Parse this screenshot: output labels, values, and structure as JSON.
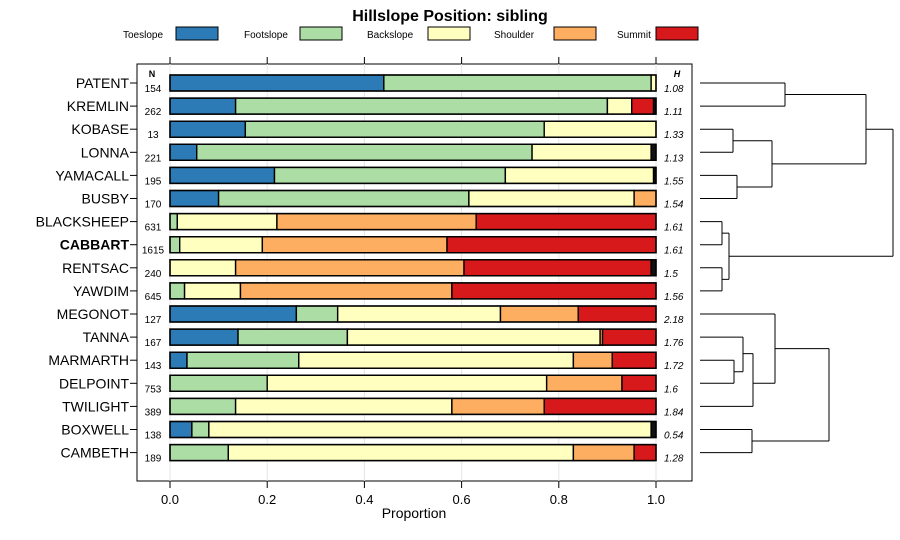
{
  "chart_data": {
    "type": "bar",
    "stacked": true,
    "orientation": "horizontal",
    "title": "Hillslope Position: sibling",
    "xlabel": "Proportion",
    "ylabel": "",
    "xlim": [
      0,
      1
    ],
    "xticks": [
      "0.0",
      "0.2",
      "0.4",
      "0.6",
      "0.8",
      "1.0"
    ],
    "xtick_values": [
      0,
      0.2,
      0.4,
      0.6,
      0.8,
      1.0
    ],
    "n_header": "N",
    "h_header": "H",
    "legend_placement": "top",
    "legend": [
      {
        "name": "Toeslope",
        "color": "#2C7BB6"
      },
      {
        "name": "Footslope",
        "color": "#ABDDA4"
      },
      {
        "name": "Backslope",
        "color": "#FFFFBF"
      },
      {
        "name": "Shoulder",
        "color": "#FDAE61"
      },
      {
        "name": "Summit",
        "color": "#D7191C"
      }
    ],
    "categories": [
      "PATENT",
      "KREMLIN",
      "KOBASE",
      "LONNA",
      "YAMACALL",
      "BUSBY",
      "BLACKSHEEP",
      "CABBART",
      "RENTSAC",
      "YAWDIM",
      "MEGONOT",
      "TANNA",
      "MARMARTH",
      "DELPOINT",
      "TWILIGHT",
      "BOXWELL",
      "CAMBETH"
    ],
    "highlighted": "CABBART",
    "n": [
      "154",
      "262",
      "13",
      "221",
      "195",
      "170",
      "631",
      "1615",
      "240",
      "645",
      "127",
      "167",
      "143",
      "753",
      "389",
      "138",
      "189"
    ],
    "h": [
      "1.08",
      "1.11",
      "1.33",
      "1.13",
      "1.55",
      "1.54",
      "1.61",
      "1.61",
      "1.5",
      "1.56",
      "2.18",
      "1.76",
      "1.72",
      "1.6",
      "1.84",
      "0.54",
      "1.28"
    ],
    "other_color": "#111111",
    "rows": [
      {
        "name": "PATENT",
        "values": [
          0.44,
          0.55,
          0.01,
          0.0,
          0.0,
          0.0
        ]
      },
      {
        "name": "KREMLIN",
        "values": [
          0.135,
          0.765,
          0.05,
          0.0,
          0.045,
          0.005
        ]
      },
      {
        "name": "KOBASE",
        "values": [
          0.155,
          0.615,
          0.23,
          0.0,
          0.0,
          0.0
        ]
      },
      {
        "name": "LONNA",
        "values": [
          0.055,
          0.69,
          0.245,
          0.0,
          0.0,
          0.01
        ]
      },
      {
        "name": "YAMACALL",
        "values": [
          0.215,
          0.475,
          0.305,
          0.0,
          0.0,
          0.005
        ]
      },
      {
        "name": "BUSBY",
        "values": [
          0.1,
          0.515,
          0.34,
          0.045,
          0.0,
          0.0
        ]
      },
      {
        "name": "BLACKSHEEP",
        "values": [
          0.0,
          0.015,
          0.205,
          0.41,
          0.37,
          0.0
        ]
      },
      {
        "name": "CABBART",
        "values": [
          0.0,
          0.02,
          0.17,
          0.38,
          0.43,
          0.0
        ]
      },
      {
        "name": "RENTSAC",
        "values": [
          0.0,
          0.0,
          0.135,
          0.47,
          0.385,
          0.01
        ]
      },
      {
        "name": "YAWDIM",
        "values": [
          0.0,
          0.03,
          0.115,
          0.435,
          0.42,
          0.0
        ]
      },
      {
        "name": "MEGONOT",
        "values": [
          0.26,
          0.085,
          0.335,
          0.16,
          0.16,
          0.0
        ]
      },
      {
        "name": "TANNA",
        "values": [
          0.14,
          0.225,
          0.52,
          0.005,
          0.11,
          0.0
        ]
      },
      {
        "name": "MARMARTH",
        "values": [
          0.035,
          0.23,
          0.565,
          0.08,
          0.09,
          0.0
        ]
      },
      {
        "name": "DELPOINT",
        "values": [
          0.0,
          0.2,
          0.575,
          0.155,
          0.07,
          0.0
        ]
      },
      {
        "name": "TWILIGHT",
        "values": [
          0.0,
          0.135,
          0.445,
          0.19,
          0.23,
          0.0
        ]
      },
      {
        "name": "BOXWELL",
        "values": [
          0.045,
          0.035,
          0.91,
          0.0,
          0.0,
          0.01
        ]
      },
      {
        "name": "CAMBETH",
        "values": [
          0.0,
          0.12,
          0.71,
          0.125,
          0.045,
          0.0
        ]
      }
    ]
  }
}
